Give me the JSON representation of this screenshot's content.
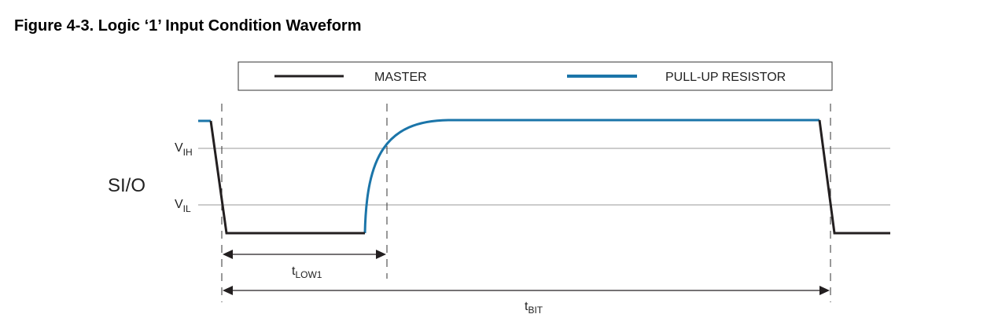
{
  "figure": {
    "title": "Figure 4-3.  Logic ‘1’ Input Condition Waveform"
  },
  "legend": {
    "master_label": "MASTER",
    "pullup_label": "PULL-UP RESISTOR"
  },
  "levels": {
    "vih_main": "V",
    "vih_sub": "IH",
    "vil_main": "V",
    "vil_sub": "IL"
  },
  "signal_label": "SI/O",
  "timing": {
    "tlow1_main": "t",
    "tlow1_sub": "LOW1",
    "tbit_main": "t",
    "tbit_sub": "BIT"
  },
  "colors": {
    "master": "#231f20",
    "pullup": "#1b75a9",
    "reference_lines": "#9a9a9a"
  }
}
